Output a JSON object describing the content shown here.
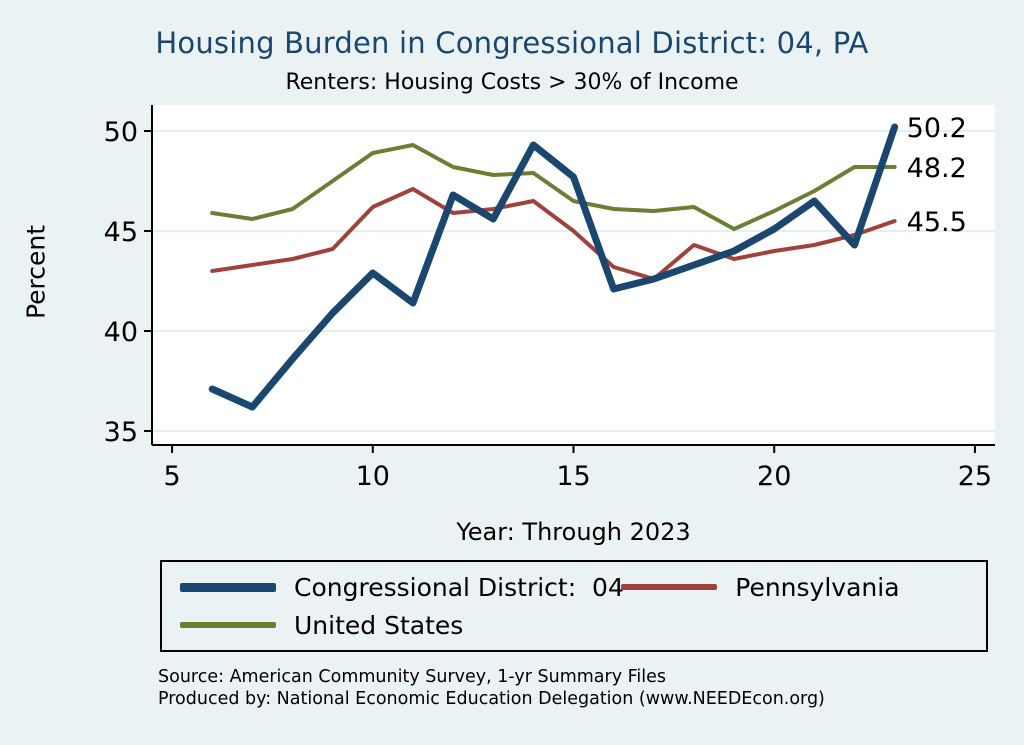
{
  "title": "Housing Burden in Congressional District:  04, PA",
  "subtitle": "Renters: Housing Costs > 30% of Income",
  "axis": {
    "ylabel": "Percent",
    "xlabel": "Year: Through 2023"
  },
  "source": {
    "line1": "Source: American Community Survey, 1-yr Summary Files",
    "line2": "Produced by: National Economic Education Delegation (www.NEEDEcon.org)"
  },
  "colors": {
    "background": "#EAF2F3",
    "plot_background": "#FFFFFF",
    "grid": "#DCE9EF",
    "axis": "#000000",
    "title": "#1A476F",
    "text": "#000000"
  },
  "chart_data": {
    "type": "line",
    "x": [
      6,
      7,
      8,
      9,
      10,
      11,
      12,
      13,
      14,
      15,
      16,
      17,
      18,
      19,
      20,
      21,
      22,
      23
    ],
    "xticks": [
      5,
      10,
      15,
      20,
      25
    ],
    "yticks": [
      35,
      40,
      45,
      50
    ],
    "xlim": [
      4.5,
      25.5
    ],
    "ylim": [
      34.3,
      51.3
    ],
    "grid": true,
    "legend_position": "bottom",
    "series": [
      {
        "name": "Congressional District:  04",
        "color": "#1A476F",
        "line_width": 7,
        "end_label": "50.2",
        "values": [
          37.1,
          36.2,
          38.6,
          40.9,
          42.9,
          41.4,
          46.8,
          45.6,
          49.3,
          47.7,
          42.1,
          42.6,
          43.3,
          44.0,
          45.1,
          46.5,
          44.3,
          50.2
        ]
      },
      {
        "name": "Pennsylvania",
        "color": "#A0423C",
        "line_width": 4,
        "end_label": "45.5",
        "values": [
          43.0,
          43.3,
          43.6,
          44.1,
          46.2,
          47.1,
          45.9,
          46.1,
          46.5,
          45.0,
          43.2,
          42.6,
          44.3,
          43.6,
          44.0,
          44.3,
          44.8,
          45.5
        ]
      },
      {
        "name": "United States",
        "color": "#6A7E34",
        "line_width": 4,
        "end_label": "48.2",
        "values": [
          45.9,
          45.6,
          46.1,
          47.5,
          48.9,
          49.3,
          48.2,
          47.8,
          47.9,
          46.5,
          46.1,
          46.0,
          46.2,
          45.1,
          46.0,
          47.0,
          48.2,
          48.2
        ]
      }
    ]
  }
}
